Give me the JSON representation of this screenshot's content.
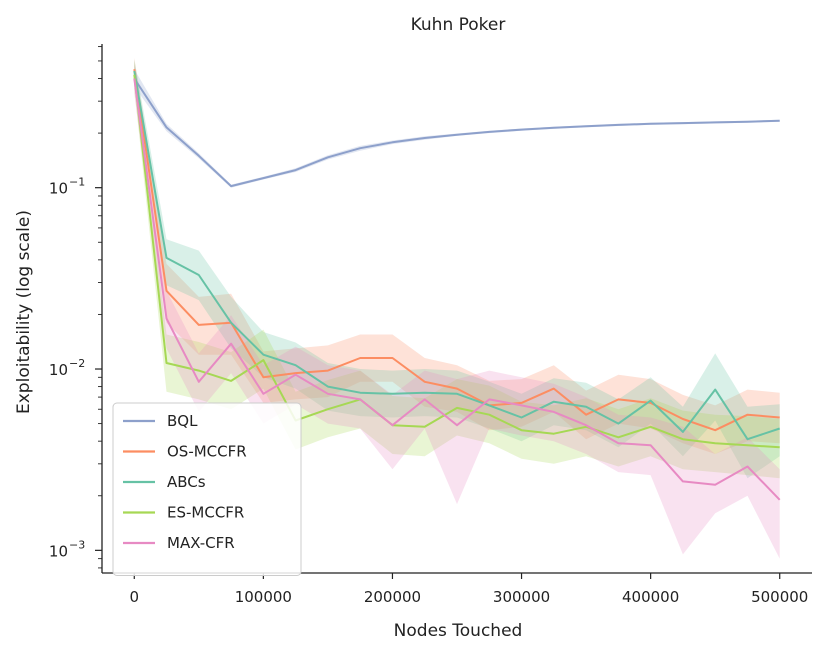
{
  "chart_data": {
    "type": "line",
    "title": "Kuhn Poker",
    "xlabel": "Nodes Touched",
    "ylabel": "Exploitability (log scale)",
    "yscale": "log",
    "xlim": [
      -25000,
      525000
    ],
    "ylim": [
      0.00075,
      0.62
    ],
    "xticks": [
      0,
      100000,
      200000,
      300000,
      400000,
      500000
    ],
    "xtick_labels": [
      "0",
      "100000",
      "200000",
      "300000",
      "400000",
      "500000"
    ],
    "yticks": [
      0.001,
      0.01,
      0.1
    ],
    "ytick_labels": [
      {
        "base": "10",
        "exp": "−3"
      },
      {
        "base": "10",
        "exp": "−2"
      },
      {
        "base": "10",
        "exp": "−1"
      }
    ],
    "grid": false,
    "legend_position": "lower-left",
    "x": [
      0,
      25000,
      50000,
      75000,
      100000,
      125000,
      150000,
      175000,
      200000,
      225000,
      250000,
      275000,
      300000,
      325000,
      350000,
      375000,
      400000,
      425000,
      450000,
      475000,
      500000
    ],
    "series": [
      {
        "name": "BQL",
        "color": "#8da0cb",
        "values": [
          0.4,
          0.215,
          0.15,
          0.102,
          0.113,
          0.125,
          0.147,
          0.165,
          0.178,
          0.188,
          0.196,
          0.203,
          0.209,
          0.214,
          0.218,
          0.222,
          0.225,
          0.227,
          0.229,
          0.231,
          0.234
        ],
        "lower": [
          0.36,
          0.205,
          0.145,
          0.1,
          0.111,
          0.122,
          0.143,
          0.16,
          0.174,
          0.184,
          0.193,
          0.2,
          0.206,
          0.211,
          0.215,
          0.219,
          0.222,
          0.224,
          0.226,
          0.228,
          0.231
        ],
        "upper": [
          0.45,
          0.225,
          0.155,
          0.104,
          0.115,
          0.128,
          0.151,
          0.17,
          0.182,
          0.192,
          0.199,
          0.206,
          0.212,
          0.217,
          0.221,
          0.225,
          0.228,
          0.23,
          0.232,
          0.234,
          0.237
        ]
      },
      {
        "name": "OS-MCCFR",
        "color": "#fc8d62",
        "values": [
          0.45,
          0.027,
          0.0175,
          0.018,
          0.009,
          0.0095,
          0.0098,
          0.0115,
          0.0115,
          0.0085,
          0.0078,
          0.0063,
          0.0065,
          0.0078,
          0.0056,
          0.0068,
          0.0065,
          0.0053,
          0.0046,
          0.0056,
          0.0054
        ],
        "lower": [
          0.38,
          0.018,
          0.012,
          0.012,
          0.0065,
          0.0068,
          0.007,
          0.0085,
          0.0085,
          0.0062,
          0.0058,
          0.0046,
          0.0048,
          0.0058,
          0.0041,
          0.005,
          0.0047,
          0.0039,
          0.0034,
          0.004,
          0.0039
        ],
        "upper": [
          0.52,
          0.038,
          0.025,
          0.026,
          0.0125,
          0.013,
          0.0135,
          0.0155,
          0.0155,
          0.0115,
          0.0105,
          0.0086,
          0.0088,
          0.0105,
          0.0076,
          0.0093,
          0.0088,
          0.0072,
          0.0063,
          0.0077,
          0.0074
        ]
      },
      {
        "name": "ABCs",
        "color": "#66c2a5",
        "values": [
          0.44,
          0.041,
          0.033,
          0.018,
          0.012,
          0.0105,
          0.008,
          0.0074,
          0.0073,
          0.0074,
          0.0073,
          0.0063,
          0.0054,
          0.0066,
          0.0062,
          0.005,
          0.0067,
          0.0045,
          0.0077,
          0.0041,
          0.0047
        ],
        "lower": [
          0.37,
          0.029,
          0.024,
          0.013,
          0.009,
          0.0078,
          0.0059,
          0.0055,
          0.0054,
          0.0055,
          0.0054,
          0.0047,
          0.004,
          0.0049,
          0.0046,
          0.0037,
          0.005,
          0.0033,
          0.0052,
          0.0025,
          0.0033
        ],
        "upper": [
          0.51,
          0.052,
          0.045,
          0.025,
          0.016,
          0.014,
          0.0108,
          0.01,
          0.0098,
          0.01,
          0.0098,
          0.0085,
          0.0073,
          0.0089,
          0.0084,
          0.0068,
          0.009,
          0.0062,
          0.0122,
          0.0062,
          0.0064
        ]
      },
      {
        "name": "ES-MCCFR",
        "color": "#a6d854",
        "values": [
          0.42,
          0.0108,
          0.0098,
          0.0086,
          0.0112,
          0.0052,
          0.006,
          0.0068,
          0.0049,
          0.0048,
          0.0061,
          0.0056,
          0.0046,
          0.0044,
          0.0048,
          0.0042,
          0.0048,
          0.0041,
          0.0039,
          0.0038,
          0.0037
        ],
        "lower": [
          0.35,
          0.0075,
          0.0068,
          0.006,
          0.0078,
          0.0036,
          0.0042,
          0.0047,
          0.0034,
          0.0033,
          0.0043,
          0.0039,
          0.0032,
          0.003,
          0.0033,
          0.0029,
          0.0033,
          0.0028,
          0.0027,
          0.0026,
          0.0025
        ],
        "upper": [
          0.5,
          0.0155,
          0.0141,
          0.0124,
          0.0165,
          0.0075,
          0.0087,
          0.0098,
          0.0071,
          0.0069,
          0.0088,
          0.0081,
          0.0066,
          0.0063,
          0.0069,
          0.006,
          0.0069,
          0.0059,
          0.0056,
          0.0055,
          0.0053
        ]
      },
      {
        "name": "MAX-CFR",
        "color": "#e78ac3",
        "values": [
          0.4,
          0.019,
          0.0085,
          0.0138,
          0.0073,
          0.0093,
          0.0073,
          0.0068,
          0.0049,
          0.0068,
          0.0049,
          0.0068,
          0.0063,
          0.0058,
          0.0049,
          0.0039,
          0.0038,
          0.0024,
          0.0023,
          0.0029,
          0.0019
        ],
        "lower": [
          0.33,
          0.013,
          0.0058,
          0.0095,
          0.005,
          0.0064,
          0.005,
          0.0047,
          0.0028,
          0.0047,
          0.0018,
          0.0047,
          0.0043,
          0.004,
          0.0034,
          0.0027,
          0.0026,
          0.00095,
          0.0016,
          0.002,
          0.0009
        ],
        "upper": [
          0.48,
          0.027,
          0.0122,
          0.0198,
          0.0105,
          0.0133,
          0.0105,
          0.0098,
          0.0072,
          0.0098,
          0.0088,
          0.0098,
          0.009,
          0.0083,
          0.007,
          0.0056,
          0.0054,
          0.0048,
          0.0034,
          0.0042,
          0.0028
        ]
      }
    ]
  }
}
